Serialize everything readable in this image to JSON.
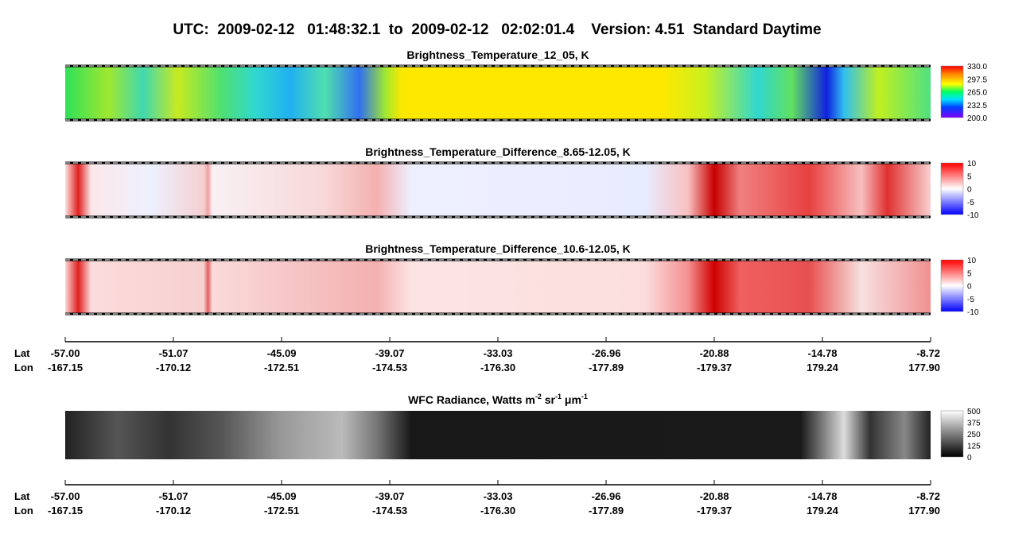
{
  "title": "UTC:  2009-02-12   01:48:32.1  to  2009-02-12   02:02:01.4    Version: 4.51  Standard Daytime",
  "panels": [
    {
      "title": "Brightness_Temperature_12_05, K",
      "colorbar_ticks": [
        "330.0",
        "297.5",
        "265.0",
        "232.5",
        "200.0"
      ]
    },
    {
      "title": "Brightness_Temperature_Difference_8.65-12.05, K",
      "colorbar_ticks": [
        "10",
        "5",
        "0",
        "-5",
        "-10"
      ]
    },
    {
      "title": "Brightness_Temperature_Difference_10.6-12.05, K",
      "colorbar_ticks": [
        "10",
        "5",
        "0",
        "-5",
        "-10"
      ]
    }
  ],
  "wfc": {
    "title_parts": [
      "WFC Radiance, Watts m",
      "-2",
      " sr",
      "-1",
      " μm",
      "-1"
    ],
    "colorbar_ticks": [
      "500",
      "375",
      "250",
      "125",
      "0"
    ]
  },
  "axes": [
    {
      "lat_label": "Lat",
      "lon_label": "Lon",
      "lat": [
        "-57.00",
        "-51.07",
        "-45.09",
        "-39.07",
        "-33.03",
        "-26.96",
        "-20.88",
        "-14.78",
        "-8.72"
      ],
      "lon": [
        "-167.15",
        "-170.12",
        "-172.51",
        "-174.53",
        "-176.30",
        "-177.89",
        "-179.37",
        "179.24",
        "177.90"
      ]
    },
    {
      "lat_label": "Lat",
      "lon_label": "Lon",
      "lat": [
        "-57.00",
        "-51.07",
        "-45.09",
        "-39.07",
        "-33.03",
        "-26.96",
        "-20.88",
        "-14.78",
        "-8.72"
      ],
      "lon": [
        "-167.15",
        "-170.12",
        "-172.51",
        "-174.53",
        "-176.30",
        "-177.89",
        "-179.37",
        "179.24",
        "177.90"
      ]
    }
  ]
}
